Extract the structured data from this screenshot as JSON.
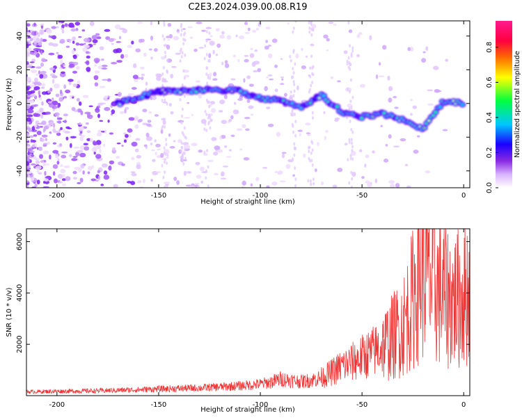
{
  "title": "C2E3.2024.039.00.08.R19",
  "chart_data": [
    {
      "type": "heatmap",
      "title": "C2E3.2024.039.00.08.R19",
      "xlabel": "Height of straight line (km)",
      "ylabel": "Frequency (Hz)",
      "xlim": [
        -215,
        3
      ],
      "ylim": [
        -50,
        49
      ],
      "xticks": [
        -200,
        -150,
        -100,
        -50,
        0
      ],
      "yticks": [
        -40,
        -20,
        0,
        20,
        40
      ],
      "colorbar": {
        "label": "Normalized spectral amplitude",
        "range": [
          0.0,
          0.95
        ],
        "ticks": [
          0.0,
          0.2,
          0.4,
          0.6,
          0.8
        ],
        "colormap": [
          "#ffffff",
          "#d9b3ff",
          "#8a2be2",
          "#1a00ff",
          "#00c8ff",
          "#00ff40",
          "#ffff00",
          "#ff6a00",
          "#ff0040",
          "#ff1a8c"
        ]
      },
      "ridge": {
        "description_points": [
          {
            "x": -170,
            "y": 0
          },
          {
            "x": -150,
            "y": 7
          },
          {
            "x": -125,
            "y": 8
          },
          {
            "x": -112,
            "y": 8
          },
          {
            "x": -100,
            "y": 3
          },
          {
            "x": -90,
            "y": 2
          },
          {
            "x": -80,
            "y": -3
          },
          {
            "x": -70,
            "y": 5
          },
          {
            "x": -60,
            "y": -5
          },
          {
            "x": -50,
            "y": -8
          },
          {
            "x": -40,
            "y": -6
          },
          {
            "x": -30,
            "y": -10
          },
          {
            "x": -20,
            "y": -15
          },
          {
            "x": -10,
            "y": 1
          },
          {
            "x": 0,
            "y": 0
          }
        ]
      },
      "grid": false,
      "legend": "none"
    },
    {
      "type": "line",
      "xlabel": "Height of straight line (km)",
      "ylabel": "SNR (10 * v/v)",
      "xlim": [
        -215,
        3
      ],
      "ylim": [
        0,
        6500
      ],
      "xticks": [
        -200,
        -150,
        -100,
        -50,
        0
      ],
      "yticks": [
        2000,
        4000,
        6000
      ],
      "series": [
        {
          "color": "#ee3333",
          "x": [
            -215,
            -200,
            -180,
            -160,
            -150,
            -140,
            -130,
            -120,
            -110,
            -100,
            -95,
            -90,
            -85,
            -80,
            -75,
            -70,
            -65,
            -60,
            -55,
            -50,
            -45,
            -40,
            -35,
            -30,
            -27,
            -25,
            -22,
            -20,
            -17,
            -15,
            -12,
            -10,
            -7,
            -5,
            -2,
            0,
            3
          ],
          "values": [
            150,
            170,
            190,
            230,
            260,
            280,
            300,
            340,
            380,
            450,
            520,
            650,
            600,
            550,
            600,
            700,
            900,
            1150,
            1300,
            1500,
            1700,
            1900,
            2300,
            2700,
            3300,
            3800,
            4700,
            5000,
            4600,
            4300,
            4100,
            4000,
            3800,
            3700,
            3800,
            4000,
            4100
          ]
        }
      ],
      "grid": false,
      "legend": "none"
    }
  ]
}
